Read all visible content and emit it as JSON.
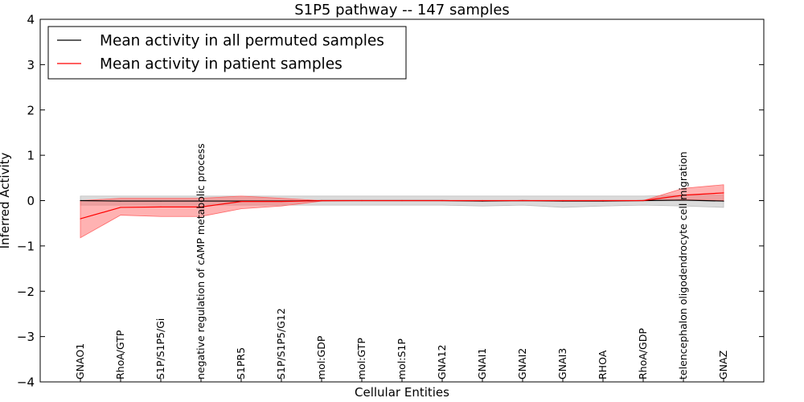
{
  "chart_data": {
    "type": "line",
    "title": "S1P5 pathway -- 147 samples",
    "xlabel": "Cellular Entities",
    "ylabel": "Inferred Activity",
    "ylim": [
      -4,
      4
    ],
    "yticks": [
      -4,
      -3,
      -2,
      -1,
      0,
      1,
      2,
      3,
      4
    ],
    "ytick_labels": [
      "−4",
      "−3",
      "−2",
      "−1",
      "0",
      "1",
      "2",
      "3",
      "4"
    ],
    "legend_position": "top-left",
    "categories": [
      "GNAO1",
      "RhoA/GTP",
      "S1P/S1P5/Gi",
      "negative regulation of cAMP metabolic process",
      "S1PR5",
      "S1P/S1P5/G12",
      "mol:GDP",
      "mol:GTP",
      "mol:S1P",
      "GNA12",
      "GNAI1",
      "GNAI2",
      "GNAI3",
      "RHOA",
      "RhoA/GDP",
      "telencephalon oligodendrocyte cell migration",
      "GNAZ"
    ],
    "series": [
      {
        "name": "Mean activity in all permuted samples",
        "color": "#000000",
        "band_color": "#bdbdbd",
        "values": [
          0.0,
          -0.01,
          -0.01,
          -0.01,
          -0.01,
          -0.01,
          0.0,
          0.0,
          0.0,
          0.0,
          -0.01,
          0.0,
          -0.01,
          -0.01,
          0.0,
          0.01,
          -0.01
        ],
        "upper": [
          0.1,
          0.1,
          0.1,
          0.1,
          0.1,
          0.1,
          0.1,
          0.1,
          0.1,
          0.1,
          0.1,
          0.1,
          0.1,
          0.1,
          0.1,
          0.12,
          0.12
        ],
        "lower": [
          -0.1,
          -0.1,
          -0.1,
          -0.1,
          -0.1,
          -0.1,
          -0.1,
          -0.1,
          -0.1,
          -0.1,
          -0.12,
          -0.1,
          -0.15,
          -0.12,
          -0.1,
          -0.12,
          -0.15
        ]
      },
      {
        "name": "Mean activity in patient samples",
        "color": "#ff0000",
        "band_color": "#ff6666",
        "values": [
          -0.4,
          -0.15,
          -0.14,
          -0.14,
          -0.02,
          -0.02,
          0.0,
          0.0,
          0.0,
          0.0,
          0.0,
          0.0,
          0.0,
          0.0,
          0.0,
          0.12,
          0.17
        ],
        "upper": [
          0.0,
          0.05,
          0.05,
          0.05,
          0.1,
          0.05,
          0.0,
          0.0,
          0.0,
          0.0,
          0.0,
          0.0,
          0.0,
          0.0,
          0.0,
          0.27,
          0.35
        ],
        "lower": [
          -0.82,
          -0.32,
          -0.35,
          -0.35,
          -0.18,
          -0.12,
          -0.01,
          0.0,
          0.0,
          0.0,
          0.0,
          0.0,
          0.0,
          0.0,
          0.0,
          0.02,
          0.0
        ]
      }
    ]
  }
}
